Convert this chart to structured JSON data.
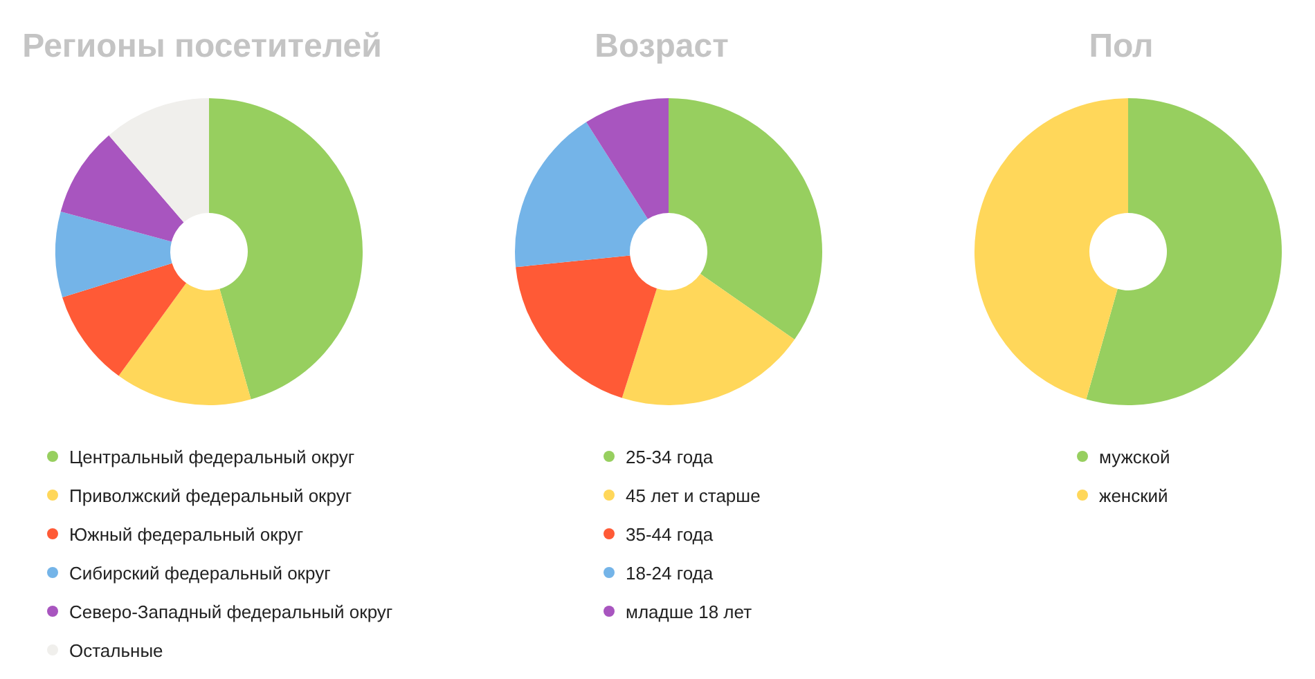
{
  "chart_data": [
    {
      "type": "donut",
      "title": "Регионы посетителей",
      "legend": "bottom",
      "categories": [
        "Центральный федеральный округ",
        "Приволжский федеральный округ",
        "Южный федеральный округ",
        "Сибирский федеральный округ",
        "Северо-Западный федеральный округ",
        "Остальные"
      ],
      "values": [
        45.6,
        14.4,
        10.2,
        9.0,
        9.5,
        11.3
      ],
      "colors": [
        "#97cf5f",
        "#ffd75a",
        "#ff5a36",
        "#74b4e8",
        "#a855bf",
        "#f0efec"
      ]
    },
    {
      "type": "donut",
      "title": "Возраст",
      "legend": "bottom",
      "categories": [
        "25-34 года",
        "45 лет и старше",
        "35-44 года",
        "18-24 года",
        "младше 18 лет"
      ],
      "values": [
        34.7,
        20.2,
        18.5,
        17.6,
        9.0
      ],
      "colors": [
        "#97cf5f",
        "#ffd75a",
        "#ff5a36",
        "#74b4e8",
        "#a855bf"
      ]
    },
    {
      "type": "donut",
      "title": "Пол",
      "legend": "bottom",
      "categories": [
        "мужской",
        "женский"
      ],
      "values": [
        54.4,
        45.6
      ],
      "colors": [
        "#97cf5f",
        "#ffd75a"
      ]
    }
  ]
}
